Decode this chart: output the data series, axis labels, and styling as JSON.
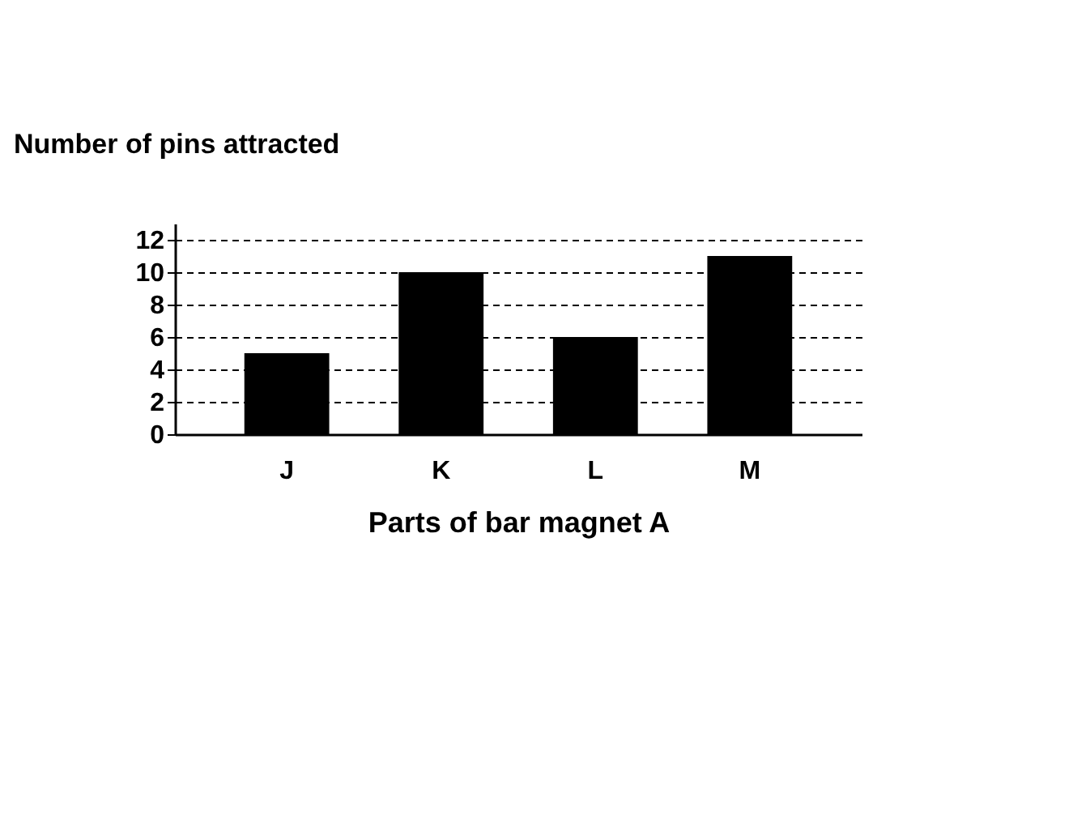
{
  "chart_data": {
    "type": "bar",
    "xlabel": "Parts of bar magnet A",
    "ylabel": "Number of pins attracted",
    "categories": [
      "J",
      "K",
      "L",
      "M"
    ],
    "series": [
      {
        "color": "#000000",
        "values": [
          5,
          10,
          6,
          11
        ]
      }
    ],
    "ylim": [
      0,
      13
    ],
    "yticks": [
      0,
      2,
      4,
      6,
      8,
      10,
      12
    ],
    "grid": "y"
  }
}
